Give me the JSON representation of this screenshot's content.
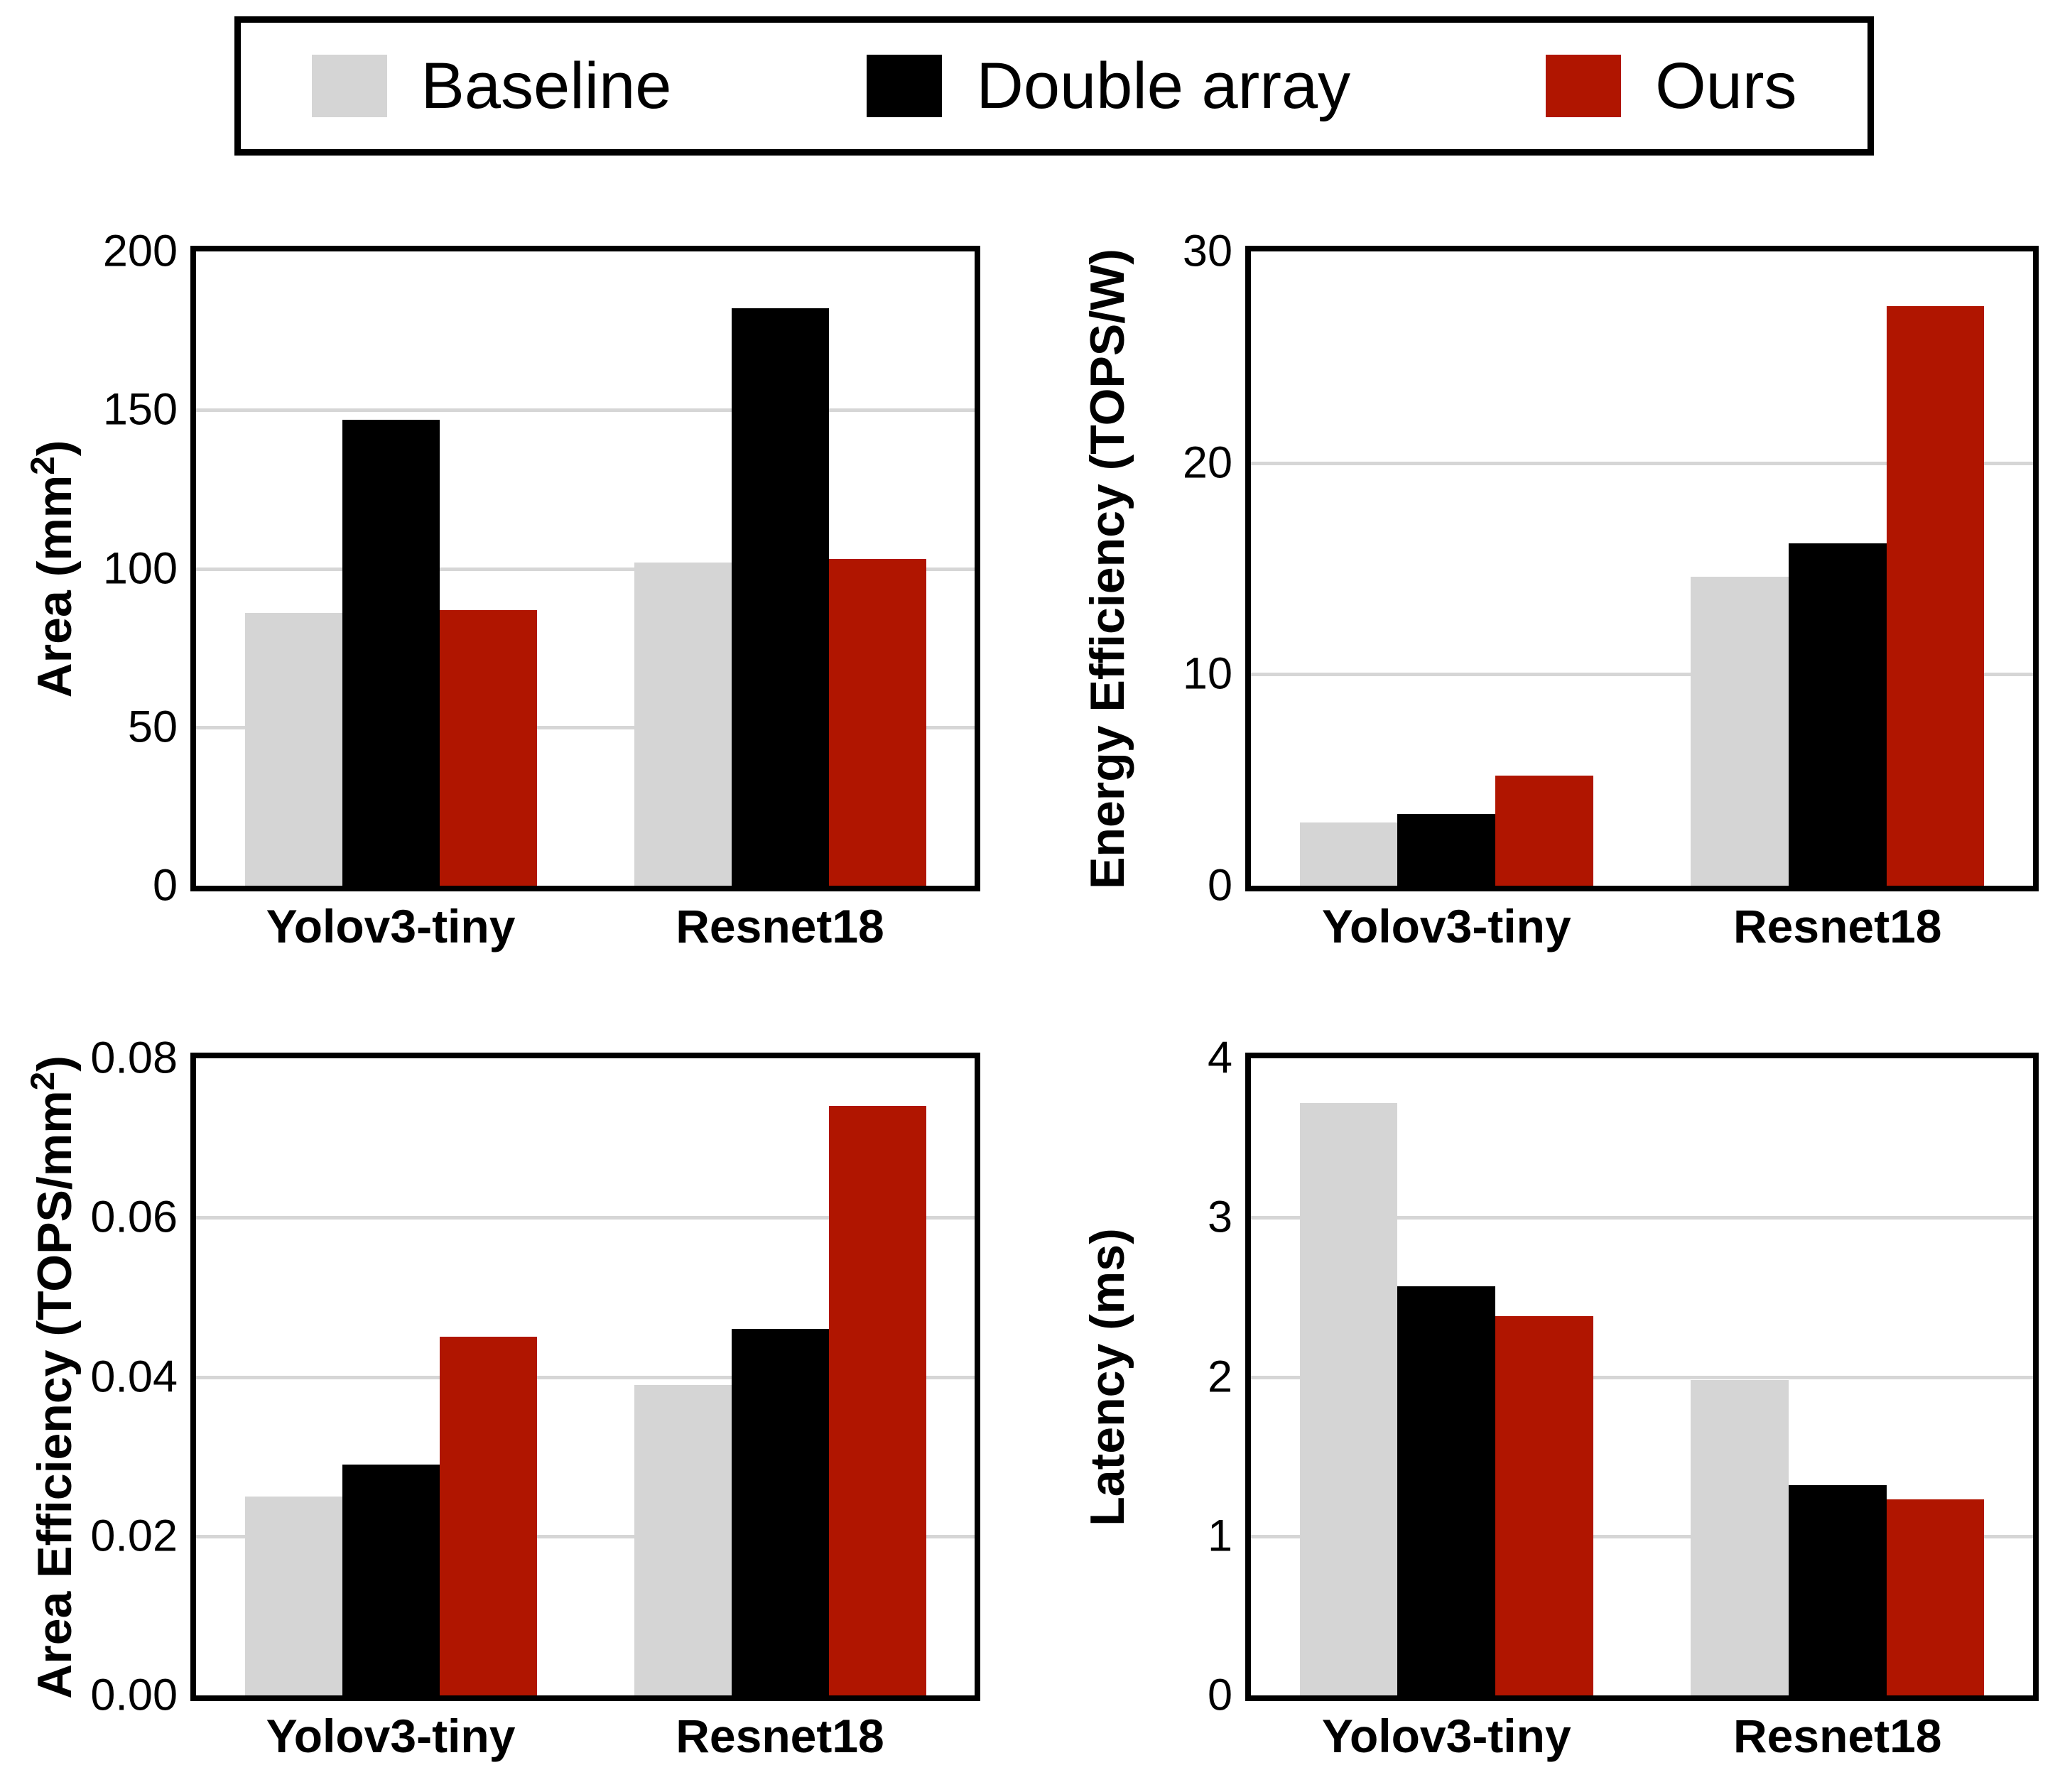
{
  "legend": {
    "items": [
      {
        "label": "Baseline",
        "color": "#d5d5d5"
      },
      {
        "label": "Double array",
        "color": "#000000"
      },
      {
        "label": "Ours",
        "color": "#b01500"
      }
    ]
  },
  "style": {
    "grid_color": "#d6d6d6",
    "axis_color": "#000000",
    "background": "#ffffff"
  },
  "chart_data": [
    {
      "type": "bar",
      "title": "",
      "ylabel": "Area (mm²)",
      "xlabel": "",
      "ylim": [
        0,
        200
      ],
      "grid": "horizontal",
      "legend_position": "top-shared",
      "yticks": [
        {
          "v": 0,
          "label": "0"
        },
        {
          "v": 50,
          "label": "50"
        },
        {
          "v": 100,
          "label": "100"
        },
        {
          "v": 150,
          "label": "150"
        },
        {
          "v": 200,
          "label": "200"
        }
      ],
      "categories": [
        "Yolov3-tiny",
        "Resnet18"
      ],
      "series": [
        {
          "name": "Baseline",
          "values": [
            86,
            102
          ]
        },
        {
          "name": "Double array",
          "values": [
            147,
            182
          ]
        },
        {
          "name": "Ours",
          "values": [
            87,
            103
          ]
        }
      ]
    },
    {
      "type": "bar",
      "title": "",
      "ylabel": "Energy Efficiency (TOPS/W)",
      "xlabel": "",
      "ylim": [
        0,
        30
      ],
      "grid": "horizontal",
      "legend_position": "top-shared",
      "yticks": [
        {
          "v": 0,
          "label": "0"
        },
        {
          "v": 10,
          "label": "10"
        },
        {
          "v": 20,
          "label": "20"
        },
        {
          "v": 30,
          "label": "30"
        }
      ],
      "categories": [
        "Yolov3-tiny",
        "Resnet18"
      ],
      "series": [
        {
          "name": "Baseline",
          "values": [
            3.0,
            14.6
          ]
        },
        {
          "name": "Double array",
          "values": [
            3.4,
            16.2
          ]
        },
        {
          "name": "Ours",
          "values": [
            5.2,
            27.4
          ]
        }
      ]
    },
    {
      "type": "bar",
      "title": "",
      "ylabel": "Area Efficiency (TOPS/mm²)",
      "xlabel": "",
      "ylim": [
        0,
        0.08
      ],
      "grid": "horizontal",
      "legend_position": "top-shared",
      "yticks": [
        {
          "v": 0,
          "label": "0.00"
        },
        {
          "v": 0.02,
          "label": "0.02"
        },
        {
          "v": 0.04,
          "label": "0.04"
        },
        {
          "v": 0.06,
          "label": "0.06"
        },
        {
          "v": 0.08,
          "label": "0.08"
        }
      ],
      "categories": [
        "Yolov3-tiny",
        "Resnet18"
      ],
      "series": [
        {
          "name": "Baseline",
          "values": [
            0.025,
            0.039
          ]
        },
        {
          "name": "Double array",
          "values": [
            0.029,
            0.046
          ]
        },
        {
          "name": "Ours",
          "values": [
            0.045,
            0.074
          ]
        }
      ]
    },
    {
      "type": "bar",
      "title": "",
      "ylabel": "Latency (ms)",
      "xlabel": "",
      "ylim": [
        0,
        4
      ],
      "grid": "horizontal",
      "legend_position": "top-shared",
      "yticks": [
        {
          "v": 0,
          "label": "0"
        },
        {
          "v": 1,
          "label": "1"
        },
        {
          "v": 2,
          "label": "2"
        },
        {
          "v": 3,
          "label": "3"
        },
        {
          "v": 4,
          "label": "4"
        }
      ],
      "categories": [
        "Yolov3-tiny",
        "Resnet18"
      ],
      "series": [
        {
          "name": "Baseline",
          "values": [
            3.72,
            1.98
          ]
        },
        {
          "name": "Double array",
          "values": [
            2.57,
            1.32
          ]
        },
        {
          "name": "Ours",
          "values": [
            2.38,
            1.23
          ]
        }
      ]
    }
  ]
}
